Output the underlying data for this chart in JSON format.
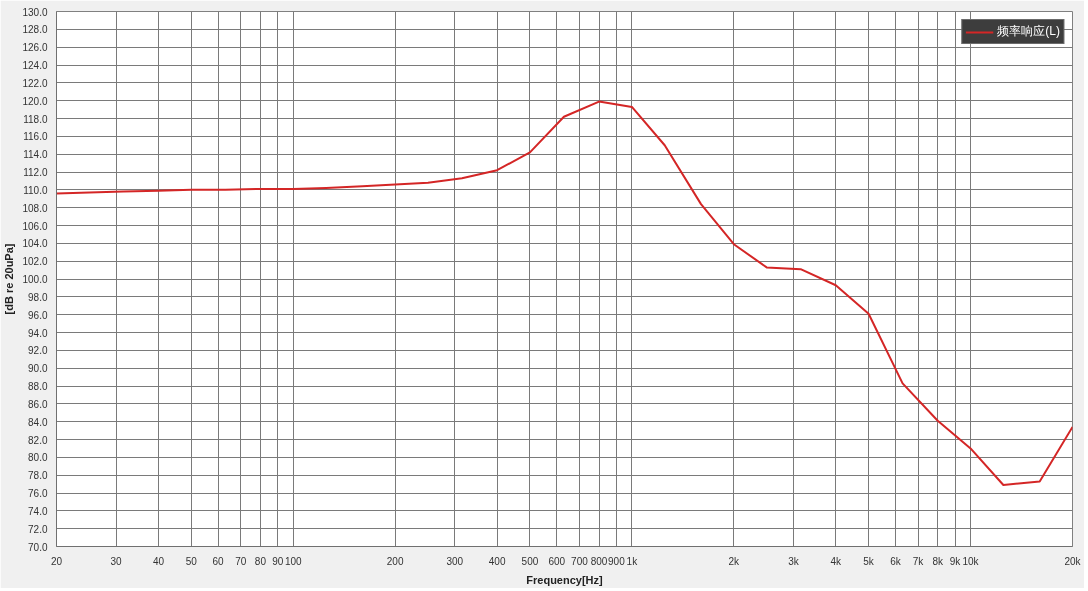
{
  "chart_data": {
    "type": "line",
    "xlabel": "Frequency[Hz]",
    "ylabel": "[dB re 20uPa]",
    "x": [
      20,
      25,
      31.5,
      40,
      50,
      63,
      80,
      100,
      125,
      160,
      200,
      250,
      315,
      400,
      500,
      630,
      800,
      1000,
      1250,
      1600,
      2000,
      2500,
      3150,
      4000,
      5000,
      6300,
      8000,
      10000,
      12500,
      16000,
      20000
    ],
    "series": [
      {
        "name": "频率响应(L)",
        "color": "#d42626",
        "values": [
          109.6,
          109.7,
          109.8,
          109.9,
          110.0,
          110.0,
          110.1,
          110.1,
          110.2,
          110.4,
          110.6,
          110.8,
          111.3,
          112.2,
          114.2,
          118.2,
          119.9,
          119.3,
          115.0,
          108.4,
          103.9,
          101.3,
          101.1,
          99.3,
          96.1,
          88.3,
          84.1,
          81.0,
          76.9,
          77.3,
          83.4
        ]
      }
    ],
    "log": "x",
    "xlim": [
      20,
      20000
    ],
    "ylim": [
      70,
      130
    ],
    "xticks": [
      20,
      30,
      40,
      50,
      60,
      70,
      80,
      90,
      100,
      200,
      300,
      400,
      500,
      600,
      700,
      800,
      900,
      {
        "value": 1000,
        "label": "1k"
      },
      {
        "value": 2000,
        "label": "2k"
      },
      {
        "value": 3000,
        "label": "3k"
      },
      {
        "value": 4000,
        "label": "4k"
      },
      {
        "value": 5000,
        "label": "5k"
      },
      {
        "value": 6000,
        "label": "6k"
      },
      {
        "value": 7000,
        "label": "7k"
      },
      {
        "value": 8000,
        "label": "8k"
      },
      {
        "value": 9000,
        "label": "9k"
      },
      {
        "value": 10000,
        "label": "10k"
      },
      {
        "value": 20000,
        "label": "20k"
      }
    ],
    "yticks": [
      {
        "value": 70,
        "label": "70.0"
      },
      {
        "value": 72,
        "label": "72.0"
      },
      {
        "value": 74,
        "label": "74.0"
      },
      {
        "value": 76,
        "label": "76.0"
      },
      {
        "value": 78,
        "label": "78.0"
      },
      {
        "value": 80,
        "label": "80.0"
      },
      {
        "value": 82,
        "label": "82.0"
      },
      {
        "value": 84,
        "label": "84.0"
      },
      {
        "value": 86,
        "label": "86.0"
      },
      {
        "value": 88,
        "label": "88.0"
      },
      {
        "value": 90,
        "label": "90.0"
      },
      {
        "value": 92,
        "label": "92.0"
      },
      {
        "value": 94,
        "label": "94.0"
      },
      {
        "value": 96,
        "label": "96.0"
      },
      {
        "value": 98,
        "label": "98.0"
      },
      {
        "value": 100,
        "label": "100.0"
      },
      {
        "value": 102,
        "label": "102.0"
      },
      {
        "value": 104,
        "label": "104.0"
      },
      {
        "value": 106,
        "label": "106.0"
      },
      {
        "value": 108,
        "label": "108.0"
      },
      {
        "value": 110,
        "label": "110.0"
      },
      {
        "value": 112,
        "label": "112.0"
      },
      {
        "value": 114,
        "label": "114.0"
      },
      {
        "value": 116,
        "label": "116.0"
      },
      {
        "value": 118,
        "label": "118.0"
      },
      {
        "value": 120,
        "label": "120.0"
      },
      {
        "value": 122,
        "label": "122.0"
      },
      {
        "value": 124,
        "label": "124.0"
      },
      {
        "value": 126,
        "label": "126.0"
      },
      {
        "value": 128,
        "label": "128.0"
      },
      {
        "value": 130,
        "label": "130.0"
      }
    ],
    "grid": true,
    "legend": "top right",
    "line_style": "solid"
  }
}
